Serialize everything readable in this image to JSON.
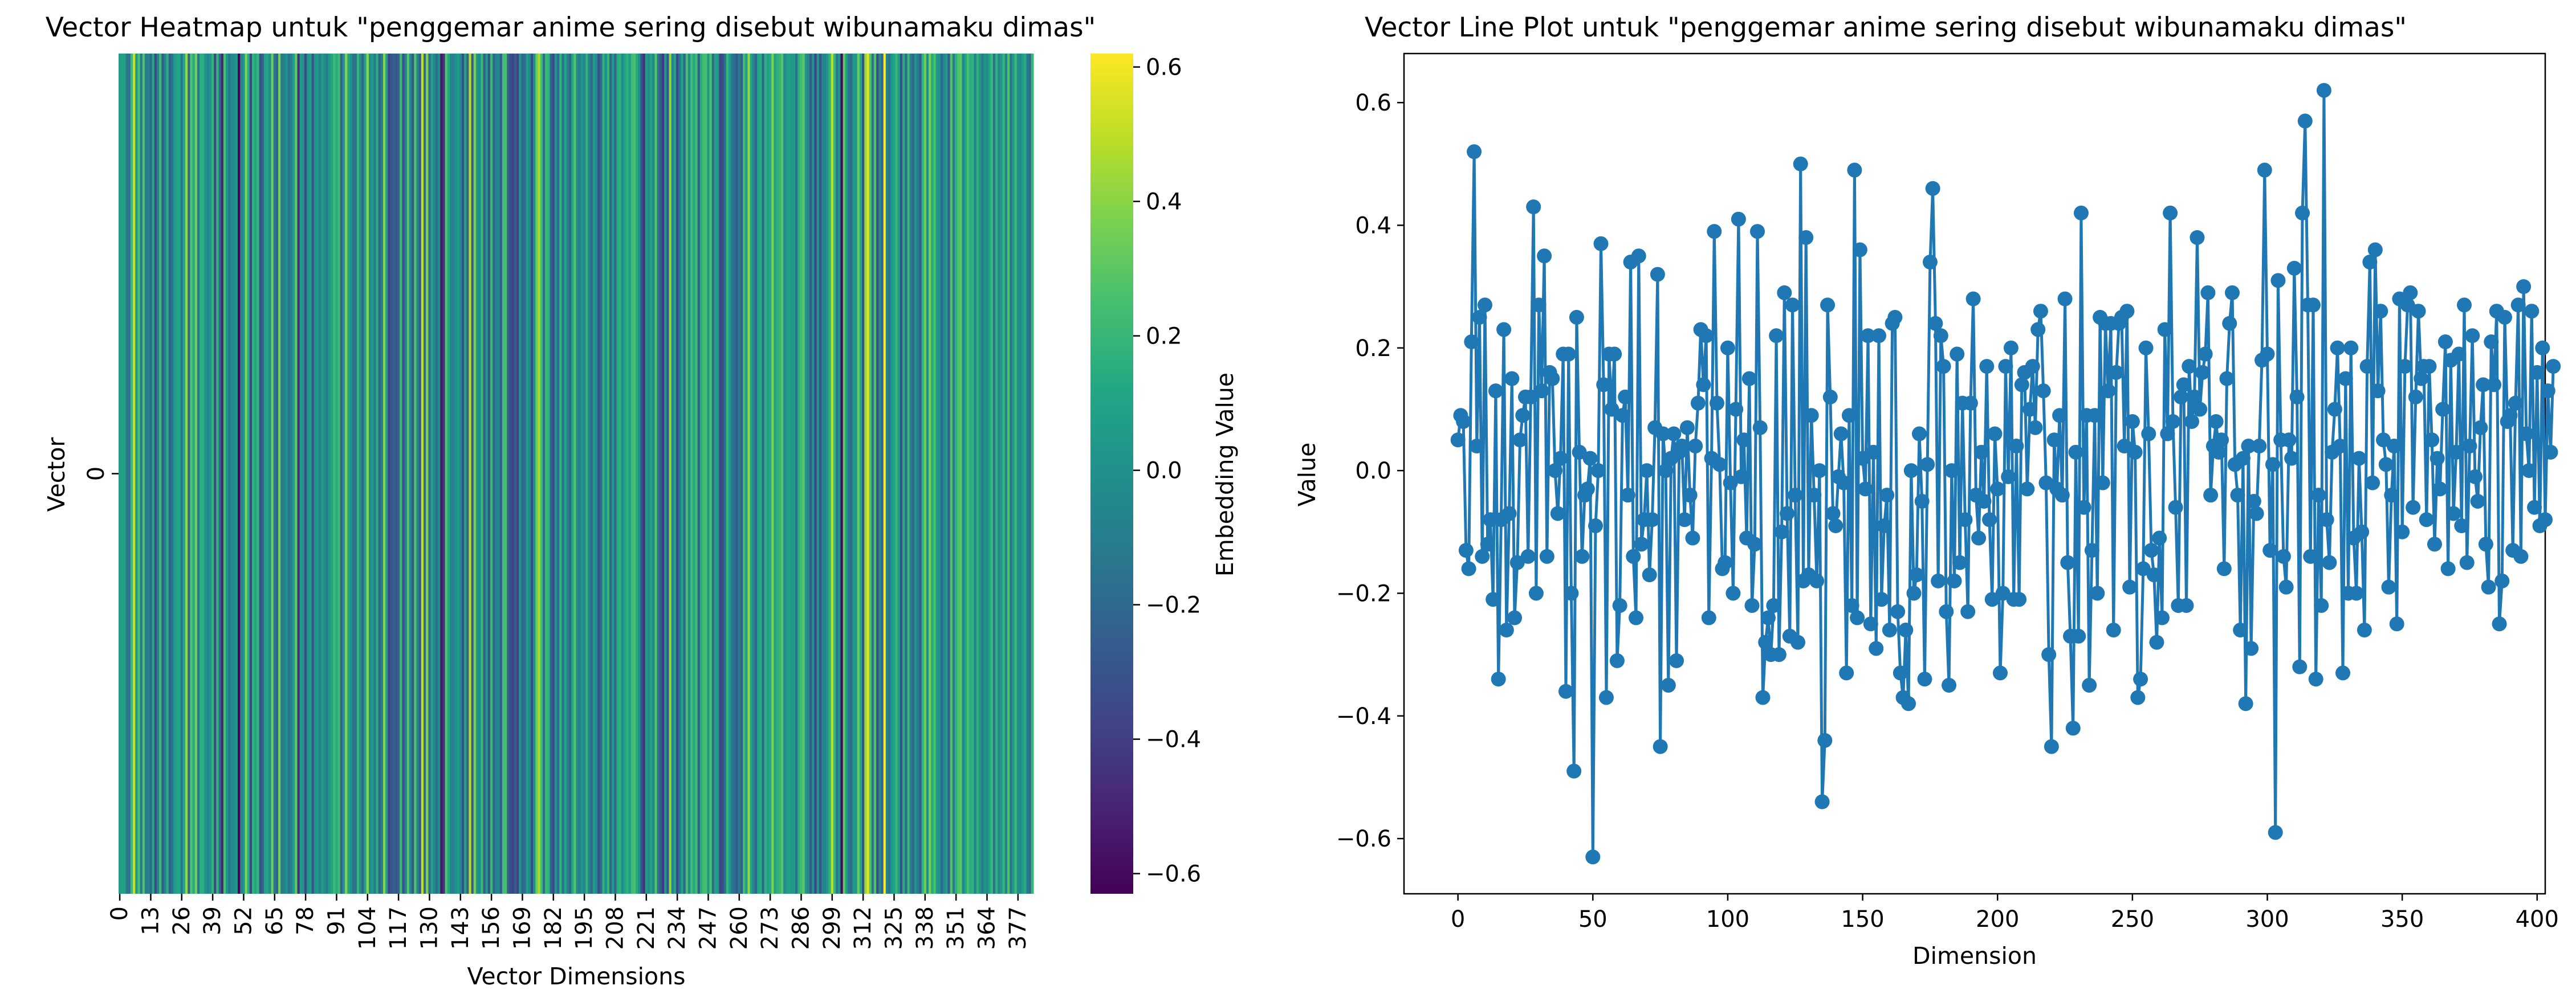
{
  "figure": {
    "colors": {
      "line": "#1f77b4",
      "axis": "#000000",
      "background": "#ffffff"
    }
  },
  "chart_data": [
    {
      "type": "heatmap",
      "title": "Vector Heatmap untuk \"penggemar anime sering disebut wibunamaku dimas\"",
      "xlabel": "Vector Dimensions",
      "ylabel": "Vector",
      "y_ticks": [
        "0"
      ],
      "x_ticks": [
        "0",
        "13",
        "26",
        "39",
        "52",
        "65",
        "78",
        "91",
        "104",
        "117",
        "130",
        "143",
        "156",
        "169",
        "182",
        "195",
        "208",
        "221",
        "234",
        "247",
        "260",
        "273",
        "286",
        "299",
        "312",
        "325",
        "338",
        "351",
        "364",
        "377"
      ],
      "colormap": "viridis",
      "colorbar": {
        "label": "Embedding Value",
        "range": [
          -0.63,
          0.62
        ],
        "ticks": [
          -0.6,
          -0.4,
          -0.2,
          0.0,
          0.2,
          0.4,
          0.6
        ],
        "tick_labels": [
          "−0.6",
          "−0.4",
          "−0.2",
          "0.0",
          "0.2",
          "0.4",
          "0.6"
        ]
      },
      "num_dimensions": 384,
      "values_note": "same vector as the line plot"
    },
    {
      "type": "line",
      "title": "Vector Line Plot untuk \"penggemar anime sering disebut wibunamaku dimas\"",
      "xlabel": "Dimension",
      "ylabel": "Value",
      "xlim": [
        -20,
        403
      ],
      "ylim": [
        -0.69,
        0.68
      ],
      "x_ticks": [
        0,
        50,
        100,
        150,
        200,
        250,
        300,
        350,
        400
      ],
      "x_tick_labels": [
        "0",
        "50",
        "100",
        "150",
        "200",
        "250",
        "300",
        "350",
        "400"
      ],
      "y_ticks": [
        -0.6,
        -0.4,
        -0.2,
        0.0,
        0.2,
        0.4,
        0.6
      ],
      "y_tick_labels": [
        "−0.6",
        "−0.4",
        "−0.2",
        "0.0",
        "0.2",
        "0.4",
        "0.6"
      ],
      "marker": "circle",
      "grid": false,
      "series": [
        {
          "values": [
            0.05,
            0.09,
            0.08,
            -0.13,
            -0.16,
            0.21,
            0.52,
            0.04,
            0.25,
            -0.14,
            0.27,
            -0.12,
            -0.08,
            -0.21,
            0.13,
            -0.34,
            -0.08,
            0.23,
            -0.26,
            -0.07,
            0.15,
            -0.24,
            -0.15,
            0.05,
            0.09,
            0.12,
            -0.14,
            0.12,
            0.43,
            -0.2,
            0.27,
            0.13,
            0.35,
            -0.14,
            0.16,
            0.15,
            0.0,
            -0.07,
            0.02,
            0.19,
            -0.36,
            0.19,
            -0.2,
            -0.49,
            0.25,
            0.03,
            -0.14,
            -0.04,
            -0.03,
            0.02,
            -0.63,
            -0.09,
            0.0,
            0.37,
            0.14,
            -0.37,
            0.19,
            0.1,
            0.19,
            -0.31,
            -0.22,
            0.09,
            0.12,
            -0.04,
            0.34,
            -0.14,
            -0.24,
            0.35,
            -0.12,
            -0.08,
            0.0,
            -0.17,
            -0.08,
            0.07,
            0.32,
            -0.45,
            0.06,
            0.0,
            -0.35,
            0.02,
            0.06,
            -0.31,
            0.03,
            0.04,
            -0.08,
            0.07,
            -0.04,
            -0.11,
            0.04,
            0.11,
            0.23,
            0.14,
            0.22,
            -0.24,
            0.02,
            0.39,
            0.11,
            0.01,
            -0.16,
            -0.15,
            0.2,
            -0.02,
            -0.2,
            0.1,
            0.41,
            -0.01,
            0.05,
            -0.11,
            0.15,
            -0.22,
            -0.12,
            0.39,
            0.07,
            -0.37,
            -0.28,
            -0.24,
            -0.3,
            -0.22,
            0.22,
            -0.3,
            -0.1,
            0.29,
            -0.07,
            -0.27,
            0.27,
            -0.04,
            -0.28,
            0.5,
            -0.18,
            0.38,
            -0.17,
            0.09,
            -0.04,
            -0.18,
            0.0,
            -0.54,
            -0.44,
            0.27,
            0.12,
            -0.07,
            -0.09,
            -0.01,
            0.06,
            -0.02,
            -0.33,
            0.09,
            -0.22,
            0.49,
            -0.24,
            0.36,
            0.02,
            -0.03,
            0.22,
            -0.25,
            0.03,
            -0.29,
            0.22,
            -0.21,
            -0.09,
            -0.04,
            -0.26,
            0.24,
            0.25,
            -0.23,
            -0.33,
            -0.37,
            -0.26,
            -0.38,
            0.0,
            -0.2,
            -0.17,
            0.06,
            -0.05,
            -0.34,
            0.01,
            0.34,
            0.46,
            0.24,
            -0.18,
            0.22,
            0.17,
            -0.23,
            -0.35,
            0.0,
            -0.18,
            0.19,
            -0.15,
            0.11,
            -0.08,
            -0.23,
            0.11,
            0.28,
            -0.04,
            -0.11,
            0.03,
            -0.05,
            0.17,
            -0.08,
            -0.21,
            0.06,
            -0.03,
            -0.33,
            -0.2,
            0.17,
            -0.01,
            0.2,
            -0.21,
            0.04,
            -0.21,
            0.14,
            0.16,
            -0.03,
            0.1,
            0.17,
            0.07,
            0.23,
            0.26,
            0.13,
            -0.02,
            -0.3,
            -0.45,
            0.05,
            -0.03,
            0.09,
            -0.04,
            0.28,
            -0.15,
            -0.27,
            -0.42,
            0.03,
            -0.27,
            0.42,
            -0.06,
            0.09,
            -0.35,
            -0.13,
            0.09,
            -0.2,
            0.25,
            -0.02,
            0.24,
            0.13,
            0.24,
            -0.26,
            0.16,
            0.24,
            0.25,
            0.04,
            0.26,
            -0.19,
            0.08,
            0.03,
            -0.37,
            -0.34,
            -0.16,
            0.2,
            0.06,
            -0.13,
            -0.17,
            -0.28,
            -0.11,
            -0.24,
            0.23,
            0.06,
            0.42,
            0.08,
            -0.06,
            -0.22,
            0.12,
            0.14,
            -0.22,
            0.17,
            0.08,
            0.12,
            0.38,
            0.1,
            0.16,
            0.19,
            0.29,
            -0.04,
            0.04,
            0.08,
            0.03,
            0.05,
            -0.16,
            0.15,
            0.24,
            0.29,
            0.01,
            -0.04,
            -0.26,
            0.02,
            -0.38,
            0.04,
            -0.29,
            -0.05,
            -0.07,
            0.04,
            0.18,
            0.49,
            0.19,
            -0.13,
            0.01,
            -0.59,
            0.31,
            0.05,
            -0.14,
            -0.19,
            0.05,
            0.02,
            0.33,
            0.12,
            -0.32,
            0.42,
            0.57,
            0.27,
            -0.14,
            0.27,
            -0.34,
            -0.04,
            -0.22,
            0.62,
            -0.08,
            -0.15,
            0.03,
            0.1,
            0.2,
            0.04,
            -0.33,
            0.15,
            -0.2,
            0.2,
            -0.11,
            -0.2,
            0.02,
            -0.1,
            -0.26,
            0.17,
            0.34,
            -0.02,
            0.36,
            0.13,
            0.26,
            0.05,
            0.01,
            -0.19,
            -0.04,
            0.04,
            -0.25,
            0.28,
            -0.1,
            0.17,
            0.27,
            0.29,
            -0.06,
            0.12,
            0.26,
            0.15,
            0.17,
            -0.08,
            0.17,
            0.05,
            -0.12,
            0.02,
            -0.03,
            0.1,
            0.21,
            -0.16,
            0.18,
            -0.07,
            0.03,
            0.19,
            -0.09,
            0.27,
            -0.15,
            0.04,
            0.22,
            -0.01,
            -0.05,
            0.07,
            0.14,
            -0.12,
            -0.19,
            0.21,
            0.14,
            0.26,
            -0.25,
            -0.18,
            0.25,
            0.08,
            0.09,
            -0.13,
            0.11,
            0.27,
            -0.14,
            0.3,
            0.06,
            0.0,
            0.26,
            -0.06,
            0.16,
            -0.09,
            0.2,
            -0.08,
            0.13,
            0.03,
            0.17
          ]
        }
      ]
    }
  ]
}
